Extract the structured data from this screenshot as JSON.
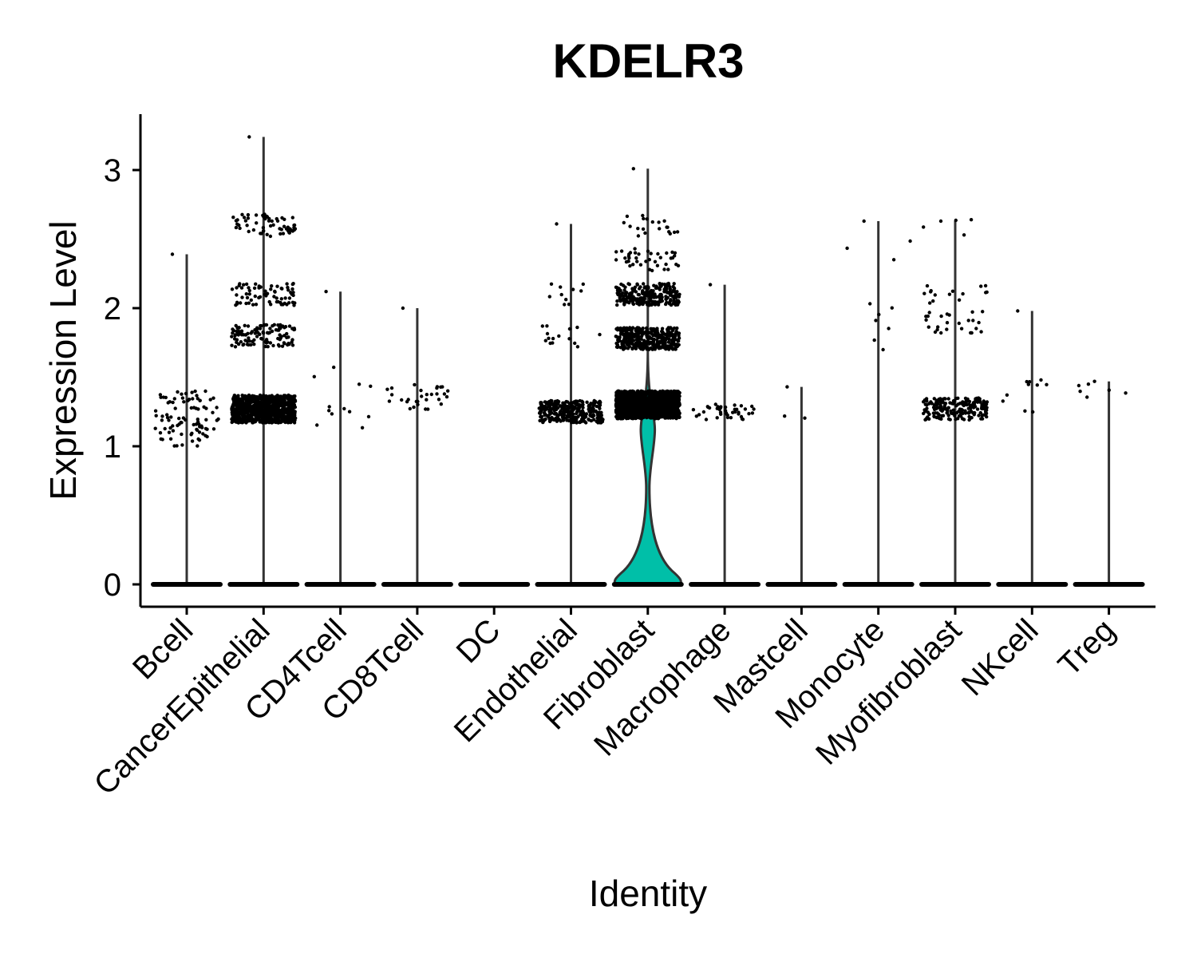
{
  "chart_data": {
    "type": "violin",
    "title": "KDELR3",
    "xlabel": "Identity",
    "ylabel": "Expression Level",
    "ylim": [
      -0.15,
      3.4
    ],
    "yticks": [
      0,
      1,
      2,
      3
    ],
    "grid": false,
    "legend": "none",
    "colors": {
      "violin_fill": "#00BFA8",
      "violin_line": "#333333",
      "points": "#000000",
      "axis": "#000000"
    },
    "categories": [
      "Bcell",
      "CancerEpithelial",
      "CD4Tcell",
      "CD8Tcell",
      "DC",
      "Endothelial",
      "Fibroblast",
      "Macrophage",
      "Mastcell",
      "Monocyte",
      "Myofibroblast",
      "NKcell",
      "Treg"
    ],
    "max": [
      2.39,
      3.24,
      2.12,
      2.0,
      0,
      2.61,
      3.01,
      2.17,
      1.43,
      2.63,
      2.63,
      1.98,
      1.47
    ],
    "nonzero_points": [
      {
        "category": "Bcell",
        "count": 90,
        "center": 1.2,
        "spread": 0.2
      },
      {
        "category": "CancerEpithelial",
        "count": 900,
        "center": 1.27,
        "spread": 0.1,
        "upper_clusters": [
          [
            1.8,
            120
          ],
          [
            2.1,
            70
          ],
          [
            2.6,
            60
          ]
        ]
      },
      {
        "category": "CD4Tcell",
        "count": 12,
        "center": 1.4,
        "spread": 0.3
      },
      {
        "category": "CD8Tcell",
        "count": 30,
        "center": 1.35,
        "spread": 0.1
      },
      {
        "category": "DC",
        "count": 0,
        "center": 0,
        "spread": 0
      },
      {
        "category": "Endothelial",
        "count": 300,
        "center": 1.25,
        "spread": 0.08,
        "upper_clusters": [
          [
            1.8,
            15
          ],
          [
            2.1,
            10
          ]
        ]
      },
      {
        "category": "Fibroblast",
        "count": 1400,
        "center": 1.3,
        "spread": 0.1,
        "upper_clusters": [
          [
            1.78,
            350
          ],
          [
            2.1,
            250
          ],
          [
            2.35,
            40
          ],
          [
            2.6,
            20
          ]
        ]
      },
      {
        "category": "Macrophage",
        "count": 40,
        "center": 1.25,
        "spread": 0.06
      },
      {
        "category": "Mastcell",
        "count": 2,
        "center": 1.2,
        "spread": 0.02
      },
      {
        "category": "Monocyte",
        "count": 10,
        "center": 2.0,
        "spread": 0.5
      },
      {
        "category": "Myofibroblast",
        "count": 200,
        "center": 1.27,
        "spread": 0.08,
        "upper_clusters": [
          [
            1.9,
            25
          ],
          [
            2.1,
            15
          ],
          [
            2.6,
            4
          ]
        ]
      },
      {
        "category": "NKcell",
        "count": 10,
        "center": 1.35,
        "spread": 0.15
      },
      {
        "category": "Treg",
        "count": 6,
        "center": 1.4,
        "spread": 0.05
      }
    ],
    "fibroblast_violin": {
      "zero_width": 1.0,
      "bulge_at": 0.1,
      "neck_at": 0.7,
      "upper_width": 0.2
    }
  }
}
